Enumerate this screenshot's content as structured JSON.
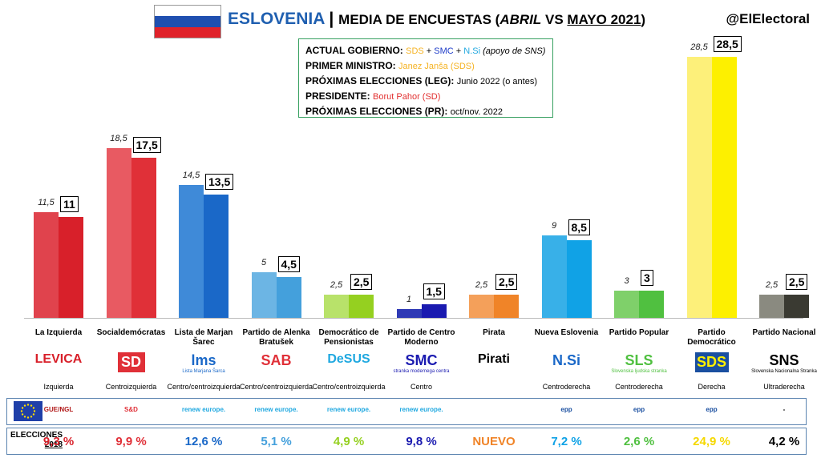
{
  "header": {
    "country": "ESLOVENIA",
    "separator": "|",
    "subtitle_a": "MEDIA DE ENCUESTAS (",
    "month_old": "ABRIL",
    "vs": " VS ",
    "month_new": "MAYO 2021",
    "subtitle_end": ")",
    "handle": "@ElElectoral",
    "flag_colors": [
      "#ffffff",
      "#1f4fb0",
      "#e0222a"
    ]
  },
  "gov_box": {
    "gov_label": "ACTUAL GOBIERNO:",
    "gov_sds": "SDS",
    "gov_plus1": " + ",
    "gov_smc": "SMC",
    "gov_plus2": " + ",
    "gov_nsi": "N.Si",
    "gov_support": " (apoyo de SNS)",
    "pm_label": "PRIMER MINISTRO:",
    "pm_value": "Janez Janša (SDS)",
    "leg_label": "PRÓXIMAS ELECCIONES (LEG):",
    "leg_value": "Junio 2022 (o antes)",
    "pres_label": "PRESIDENTE:",
    "pres_value": "Borut Pahor (SD)",
    "pr_label": "PRÓXIMAS ELECCIONES (PR):",
    "pr_value": "oct/nov. 2022"
  },
  "chart_data": {
    "type": "bar",
    "categories": [
      "La Izquierda",
      "Socialdemócratas",
      "Lista de Marjan Šarec",
      "Partido de Alenka Bratušek",
      "Democrático de Pensionistas",
      "Partido de Centro Moderno",
      "Pirata",
      "Nueva Eslovenia",
      "Partido Popular",
      "Partido Democrático",
      "Partido Nacional"
    ],
    "series": [
      {
        "name": "ABRIL",
        "values": [
          11.5,
          18.5,
          14.5,
          5,
          2.5,
          1,
          2.5,
          9,
          3,
          28.5,
          2.5
        ]
      },
      {
        "name": "MAYO 2021",
        "values": [
          11,
          17.5,
          13.5,
          4.5,
          2.5,
          1.5,
          2.5,
          8.5,
          3,
          28.5,
          2.5
        ]
      }
    ],
    "old_labels": [
      "11,5",
      "18,5",
      "14,5",
      "5",
      "2,5",
      "1",
      "2,5",
      "9",
      "3",
      "28,5",
      "2,5"
    ],
    "new_labels": [
      "11",
      "17,5",
      "13,5",
      "4,5",
      "2,5",
      "1,5",
      "2,5",
      "8,5",
      "3",
      "28,5",
      "2,5"
    ],
    "colors_old": [
      "#e0434d",
      "#e85a62",
      "#3f8ad8",
      "#6cb5e4",
      "#b8e26a",
      "#2f3ab5",
      "#f4a05a",
      "#38b0e8",
      "#7fd06a",
      "#fdf07a",
      "#8a8a80"
    ],
    "colors_new": [
      "#d8202a",
      "#e03038",
      "#1a68c8",
      "#44a0dc",
      "#95d020",
      "#1a1ab0",
      "#f08428",
      "#10a2e6",
      "#50c040",
      "#fdf000",
      "#3a3a32"
    ],
    "ylim": [
      0,
      30
    ],
    "legend": "none",
    "grid": false
  },
  "parties": [
    {
      "name": "La Izquierda",
      "ideology": "Izquierda",
      "logo": "LEVICA",
      "logo_color": "#d8202a",
      "group": "GUE/NGL",
      "group_color": "#b01515",
      "result_2018": "9,3 %",
      "result_color": "#d8202a"
    },
    {
      "name": "Socialdemócratas",
      "ideology": "Centroizquierda",
      "logo": "SD",
      "logo_color": "#e03038",
      "group": "S&D",
      "group_color": "#e03038",
      "result_2018": "9,9 %",
      "result_color": "#e03038"
    },
    {
      "name": "Lista de Marjan Šarec",
      "ideology": "Centro/centroizquierda",
      "logo": "lms",
      "logo_sub": "Lista Marjana Šarca",
      "logo_color": "#1a68c8",
      "group": "renew europe.",
      "group_color": "#1fa8e0",
      "result_2018": "12,6 %",
      "result_color": "#1a68c8"
    },
    {
      "name": "Partido de Alenka Bratušek",
      "ideology": "Centro/centroizquierda",
      "logo": "SAB",
      "logo_color": "#e03038",
      "group": "renew europe.",
      "group_color": "#1fa8e0",
      "result_2018": "5,1 %",
      "result_color": "#44a0dc"
    },
    {
      "name": "Democrático de Pensionistas",
      "ideology": "Centro/centroizquierda",
      "logo": "DeSUS",
      "logo_color": "#1fa8e0",
      "group": "renew europe.",
      "group_color": "#1fa8e0",
      "result_2018": "4,9 %",
      "result_color": "#95d020"
    },
    {
      "name": "Partido de Centro Moderno",
      "ideology": "Centro",
      "logo": "SMC",
      "logo_sub": "stranka modernega centra",
      "logo_color": "#1a1ab0",
      "group": "renew europe.",
      "group_color": "#1fa8e0",
      "result_2018": "9,8 %",
      "result_color": "#1a1ab0"
    },
    {
      "name": "Pirata",
      "ideology": "",
      "logo": "Pirati",
      "logo_color": "#000000",
      "group": "",
      "group_color": "#000000",
      "result_2018": "NUEVO",
      "result_color": "#f08428"
    },
    {
      "name": "Nueva Eslovenia",
      "ideology": "Centroderecha",
      "logo": "N.Si",
      "logo_color": "#1a68c8",
      "group": "epp",
      "group_color": "#1a4fa0",
      "result_2018": "7,2 %",
      "result_color": "#10a2e6"
    },
    {
      "name": "Partido Popular",
      "ideology": "Centroderecha",
      "logo": "SLS",
      "logo_sub": "Slovenska ljudska stranka",
      "logo_color": "#50c040",
      "group": "epp",
      "group_color": "#1a4fa0",
      "result_2018": "2,6 %",
      "result_color": "#50c040"
    },
    {
      "name": "Partido Democrático",
      "ideology": "Derecha",
      "logo": "SDS",
      "logo_color": "#1a4fa0",
      "group": "epp",
      "group_color": "#1a4fa0",
      "result_2018": "24,9 %",
      "result_color": "#f5d800"
    },
    {
      "name": "Partido Nacional",
      "ideology": "Ultraderecha",
      "logo": "SNS",
      "logo_sub": "Slovenska Nacionalna Stranka",
      "logo_color": "#000000",
      "group": "-",
      "group_color": "#000000",
      "result_2018": "4,2 %",
      "result_color": "#000000"
    }
  ],
  "footer": {
    "elec_label_1": "ELECCIONES",
    "elec_label_2": "2018"
  }
}
